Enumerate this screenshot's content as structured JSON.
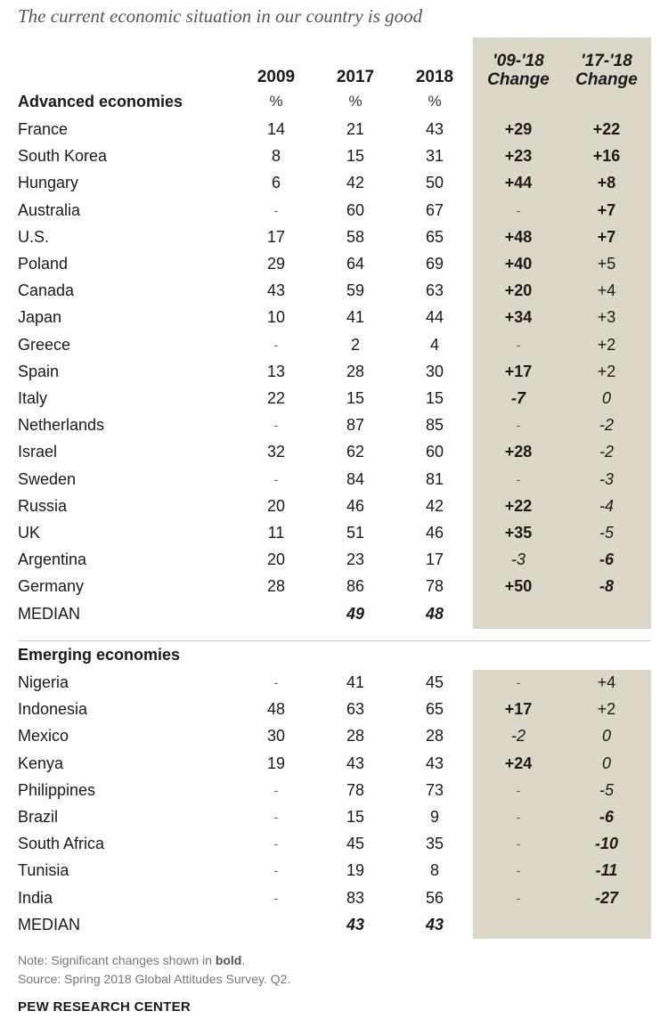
{
  "chart_data": {
    "type": "table",
    "title": "The current economic situation in our country is good",
    "columns": [
      "2009",
      "2017",
      "2018",
      "'09-'18 Change",
      "'17-'18 Change"
    ],
    "units": [
      "%",
      "%",
      "%"
    ],
    "groups": [
      {
        "name": "Advanced economies",
        "rows": [
          {
            "country": "France",
            "y2009": "14",
            "y2017": "21",
            "y2018": "43",
            "ch0918": "+29",
            "ch0918_bold": true,
            "ch1718": "+22",
            "ch1718_bold": true
          },
          {
            "country": "South Korea",
            "y2009": "8",
            "y2017": "15",
            "y2018": "31",
            "ch0918": "+23",
            "ch0918_bold": true,
            "ch1718": "+16",
            "ch1718_bold": true
          },
          {
            "country": "Hungary",
            "y2009": "6",
            "y2017": "42",
            "y2018": "50",
            "ch0918": "+44",
            "ch0918_bold": true,
            "ch1718": "+8",
            "ch1718_bold": true
          },
          {
            "country": "Australia",
            "y2009": "-",
            "y2017": "60",
            "y2018": "67",
            "ch0918": "-",
            "ch0918_bold": false,
            "ch1718": "+7",
            "ch1718_bold": true
          },
          {
            "country": "U.S.",
            "y2009": "17",
            "y2017": "58",
            "y2018": "65",
            "ch0918": "+48",
            "ch0918_bold": true,
            "ch1718": "+7",
            "ch1718_bold": true
          },
          {
            "country": "Poland",
            "y2009": "29",
            "y2017": "64",
            "y2018": "69",
            "ch0918": "+40",
            "ch0918_bold": true,
            "ch1718": "+5",
            "ch1718_bold": false
          },
          {
            "country": "Canada",
            "y2009": "43",
            "y2017": "59",
            "y2018": "63",
            "ch0918": "+20",
            "ch0918_bold": true,
            "ch1718": "+4",
            "ch1718_bold": false
          },
          {
            "country": "Japan",
            "y2009": "10",
            "y2017": "41",
            "y2018": "44",
            "ch0918": "+34",
            "ch0918_bold": true,
            "ch1718": "+3",
            "ch1718_bold": false
          },
          {
            "country": "Greece",
            "y2009": "-",
            "y2017": "2",
            "y2018": "4",
            "ch0918": "-",
            "ch0918_bold": false,
            "ch1718": "+2",
            "ch1718_bold": false
          },
          {
            "country": "Spain",
            "y2009": "13",
            "y2017": "28",
            "y2018": "30",
            "ch0918": "+17",
            "ch0918_bold": true,
            "ch1718": "+2",
            "ch1718_bold": false
          },
          {
            "country": "Italy",
            "y2009": "22",
            "y2017": "15",
            "y2018": "15",
            "ch0918": "-7",
            "ch0918_bold": true,
            "ch1718": "0",
            "ch1718_bold": false
          },
          {
            "country": "Netherlands",
            "y2009": "-",
            "y2017": "87",
            "y2018": "85",
            "ch0918": "-",
            "ch0918_bold": false,
            "ch1718": "-2",
            "ch1718_bold": false
          },
          {
            "country": "Israel",
            "y2009": "32",
            "y2017": "62",
            "y2018": "60",
            "ch0918": "+28",
            "ch0918_bold": true,
            "ch1718": "-2",
            "ch1718_bold": false
          },
          {
            "country": "Sweden",
            "y2009": "-",
            "y2017": "84",
            "y2018": "81",
            "ch0918": "-",
            "ch0918_bold": false,
            "ch1718": "-3",
            "ch1718_bold": false
          },
          {
            "country": "Russia",
            "y2009": "20",
            "y2017": "46",
            "y2018": "42",
            "ch0918": "+22",
            "ch0918_bold": true,
            "ch1718": "-4",
            "ch1718_bold": false
          },
          {
            "country": "UK",
            "y2009": "11",
            "y2017": "51",
            "y2018": "46",
            "ch0918": "+35",
            "ch0918_bold": true,
            "ch1718": "-5",
            "ch1718_bold": false
          },
          {
            "country": "Argentina",
            "y2009": "20",
            "y2017": "23",
            "y2018": "17",
            "ch0918": "-3",
            "ch0918_bold": false,
            "ch1718": "-6",
            "ch1718_bold": true
          },
          {
            "country": "Germany",
            "y2009": "28",
            "y2017": "86",
            "y2018": "78",
            "ch0918": "+50",
            "ch0918_bold": true,
            "ch1718": "-8",
            "ch1718_bold": true
          }
        ],
        "median": {
          "label": "MEDIAN",
          "y2017": "49",
          "y2018": "48"
        }
      },
      {
        "name": "Emerging economies",
        "rows": [
          {
            "country": "Nigeria",
            "y2009": "-",
            "y2017": "41",
            "y2018": "45",
            "ch0918": "-",
            "ch0918_bold": false,
            "ch1718": "+4",
            "ch1718_bold": false
          },
          {
            "country": "Indonesia",
            "y2009": "48",
            "y2017": "63",
            "y2018": "65",
            "ch0918": "+17",
            "ch0918_bold": true,
            "ch1718": "+2",
            "ch1718_bold": false
          },
          {
            "country": "Mexico",
            "y2009": "30",
            "y2017": "28",
            "y2018": "28",
            "ch0918": "-2",
            "ch0918_bold": false,
            "ch1718": "0",
            "ch1718_bold": false
          },
          {
            "country": "Kenya",
            "y2009": "19",
            "y2017": "43",
            "y2018": "43",
            "ch0918": "+24",
            "ch0918_bold": true,
            "ch1718": "0",
            "ch1718_bold": false
          },
          {
            "country": "Philippines",
            "y2009": "-",
            "y2017": "78",
            "y2018": "73",
            "ch0918": "-",
            "ch0918_bold": false,
            "ch1718": "-5",
            "ch1718_bold": false
          },
          {
            "country": "Brazil",
            "y2009": "-",
            "y2017": "15",
            "y2018": "9",
            "ch0918": "-",
            "ch0918_bold": false,
            "ch1718": "-6",
            "ch1718_bold": true
          },
          {
            "country": "South Africa",
            "y2009": "-",
            "y2017": "45",
            "y2018": "35",
            "ch0918": "-",
            "ch0918_bold": false,
            "ch1718": "-10",
            "ch1718_bold": true
          },
          {
            "country": "Tunisia",
            "y2009": "-",
            "y2017": "19",
            "y2018": "8",
            "ch0918": "-",
            "ch0918_bold": false,
            "ch1718": "-11",
            "ch1718_bold": true
          },
          {
            "country": "India",
            "y2009": "-",
            "y2017": "83",
            "y2018": "56",
            "ch0918": "-",
            "ch0918_bold": false,
            "ch1718": "-27",
            "ch1718_bold": true
          }
        ],
        "median": {
          "label": "MEDIAN",
          "y2017": "43",
          "y2018": "43"
        }
      }
    ],
    "note_prefix": "Note: Significant changes shown in ",
    "note_bold": "bold",
    "note_suffix": ".",
    "source": "Source: Spring 2018 Global Attitudes Survey. Q2.",
    "brand": "PEW RESEARCH CENTER",
    "colors": {
      "shade": "#dcd7c7",
      "text": "#1a1a1a",
      "note": "#777777"
    }
  }
}
